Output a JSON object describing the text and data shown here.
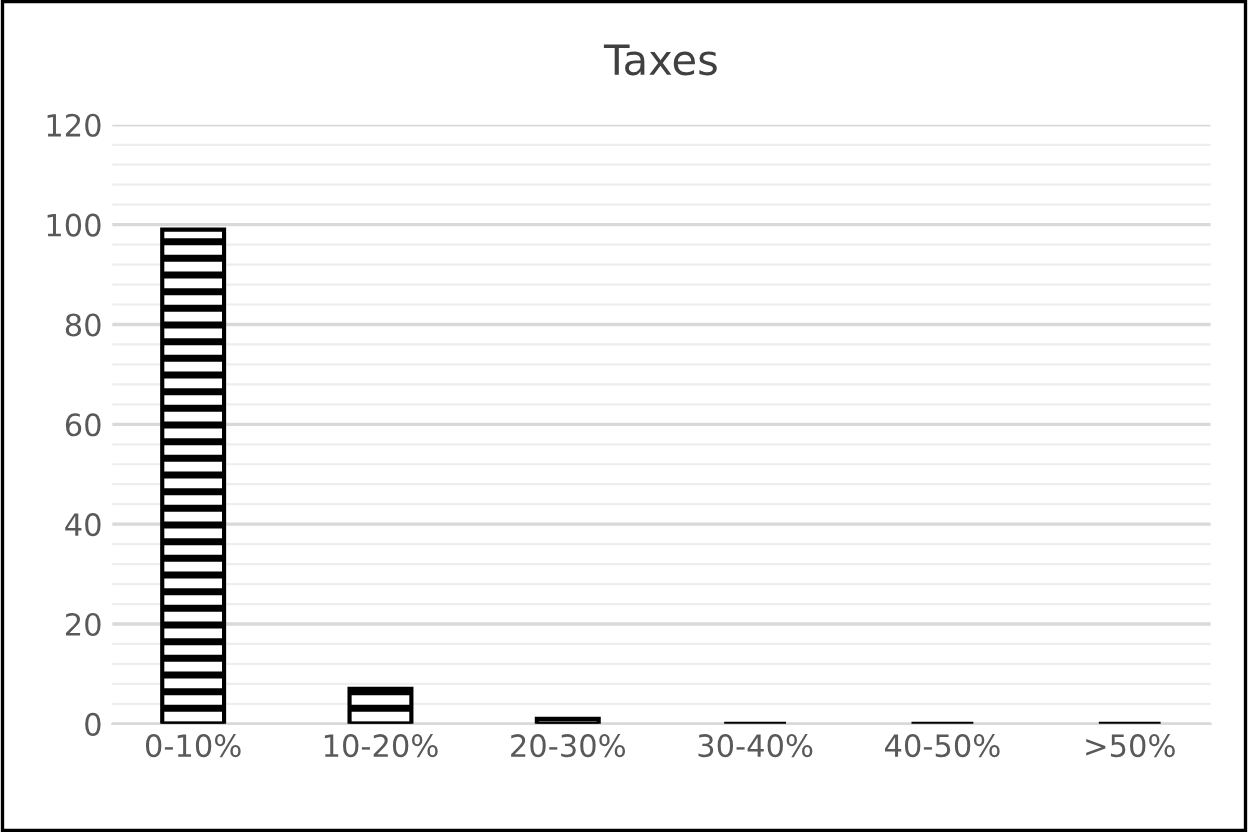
{
  "chart_data": {
    "type": "bar",
    "title": "Taxes",
    "categories": [
      "0-10%",
      "10-20%",
      "20-30%",
      "30-40%",
      "40-50%",
      ">50%"
    ],
    "values": [
      99,
      7,
      1,
      0,
      0,
      0
    ],
    "color": "#000000",
    "ylim": [
      0,
      120
    ],
    "yticks": [
      0,
      20,
      40,
      60,
      80,
      100,
      120
    ],
    "grid": "y"
  }
}
